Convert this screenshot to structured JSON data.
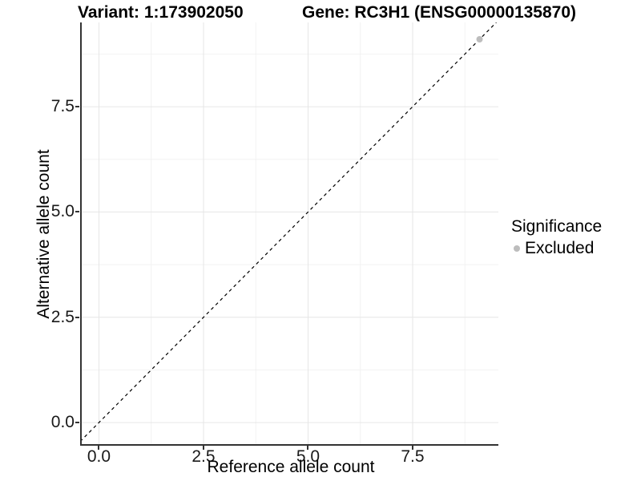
{
  "colors": {
    "background": "#ffffff",
    "grid_major": "#e6e6e6",
    "grid_minor": "#f2f2f2",
    "axis_line": "#333333",
    "tick_text": "#1a1a1a",
    "title_text": "#000000",
    "reference_line": "#000000",
    "excluded_point": "#bdbdbd"
  },
  "chart_data": {
    "type": "scatter",
    "titles": {
      "left": "Variant: 1:173902050",
      "right": "Gene: RC3H1 (ENSG00000135870)"
    },
    "xlabel": "Reference allele count",
    "ylabel": "Alternative allele count",
    "xlim": [
      -0.45,
      9.55
    ],
    "ylim": [
      -0.55,
      9.5
    ],
    "x_ticks": [
      0.0,
      2.5,
      5.0,
      7.5
    ],
    "y_ticks": [
      0.0,
      2.5,
      5.0,
      7.5
    ],
    "x_minor_breaks": [
      1.25,
      3.75,
      6.25,
      8.75
    ],
    "y_minor_breaks": [
      1.25,
      3.75,
      6.25,
      8.75
    ],
    "tick_decimals": 1,
    "grid": "major-and-minor",
    "reference_line": {
      "type": "abline",
      "slope": 1,
      "intercept": 0,
      "style": "dashed"
    },
    "series": [
      {
        "name": "Excluded",
        "color": "#bdbdbd",
        "points": [
          {
            "x": 9.1,
            "y": 9.1
          }
        ]
      }
    ],
    "legend": {
      "title": "Significance",
      "position": "right",
      "entries": [
        {
          "label": "Excluded",
          "color": "#bdbdbd"
        }
      ]
    }
  }
}
